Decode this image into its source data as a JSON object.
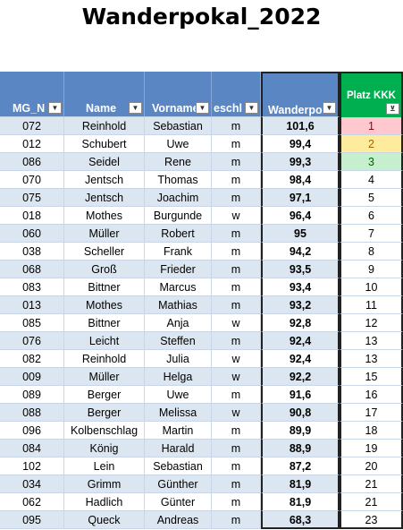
{
  "title": "Wanderpokal_2022",
  "table": {
    "headers": [
      "MG_N",
      "Name",
      "Vorname",
      "eschl",
      "Wanderpok",
      "Platz KKK"
    ],
    "rows": [
      [
        "072",
        "Reinhold",
        "Sebastian",
        "m",
        "101,6",
        "1"
      ],
      [
        "012",
        "Schubert",
        "Uwe",
        "m",
        "99,4",
        "2"
      ],
      [
        "086",
        "Seidel",
        "Rene",
        "m",
        "99,3",
        "3"
      ],
      [
        "070",
        "Jentsch",
        "Thomas",
        "m",
        "98,4",
        "4"
      ],
      [
        "075",
        "Jentsch",
        "Joachim",
        "m",
        "97,1",
        "5"
      ],
      [
        "018",
        "Mothes",
        "Burgunde",
        "w",
        "96,4",
        "6"
      ],
      [
        "060",
        "Müller",
        "Robert",
        "m",
        "95",
        "7"
      ],
      [
        "038",
        "Scheller",
        "Frank",
        "m",
        "94,2",
        "8"
      ],
      [
        "068",
        "Groß",
        "Frieder",
        "m",
        "93,5",
        "9"
      ],
      [
        "083",
        "Bittner",
        "Marcus",
        "m",
        "93,4",
        "10"
      ],
      [
        "013",
        "Mothes",
        "Mathias",
        "m",
        "93,2",
        "11"
      ],
      [
        "085",
        "Bittner",
        "Anja",
        "w",
        "92,8",
        "12"
      ],
      [
        "076",
        "Leicht",
        "Steffen",
        "m",
        "92,4",
        "13"
      ],
      [
        "082",
        "Reinhold",
        "Julia",
        "w",
        "92,4",
        "13"
      ],
      [
        "009",
        "Müller",
        "Helga",
        "w",
        "92,2",
        "15"
      ],
      [
        "089",
        "Berger",
        "Uwe",
        "m",
        "91,6",
        "16"
      ],
      [
        "088",
        "Berger",
        "Melissa",
        "w",
        "90,8",
        "17"
      ],
      [
        "096",
        "Kolbenschlag",
        "Martin",
        "m",
        "89,9",
        "18"
      ],
      [
        "084",
        "König",
        "Harald",
        "m",
        "88,9",
        "19"
      ],
      [
        "102",
        "Lein",
        "Sebastian",
        "m",
        "87,2",
        "20"
      ],
      [
        "034",
        "Grimm",
        "Günther",
        "m",
        "81,9",
        "21"
      ],
      [
        "062",
        "Hadlich",
        "Günter",
        "m",
        "81,9",
        "21"
      ],
      [
        "095",
        "Queck",
        "Andreas",
        "m",
        "68,3",
        "23"
      ]
    ]
  }
}
